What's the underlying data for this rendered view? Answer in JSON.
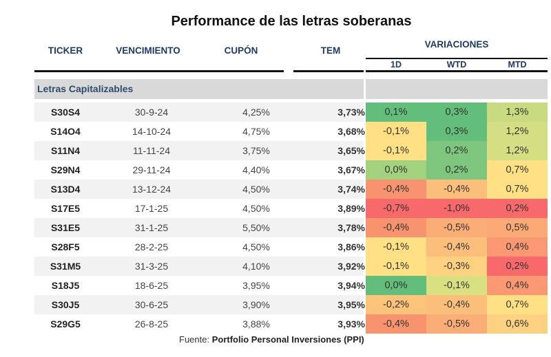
{
  "title": "Performance de las letras soberanas",
  "headers": {
    "ticker": "TICKER",
    "vencimiento": "VENCIMIENTO",
    "cupon": "CUPÓN",
    "tem": "TEM",
    "variaciones": "VARIACIONES",
    "d1": "1D",
    "wtd": "WTD",
    "mtd": "MTD"
  },
  "group_label": "Letras Capitalizables",
  "rows": [
    {
      "ticker": "S30S4",
      "vencimiento": "30-9-24",
      "cupon": "4,25%",
      "tem": "3,73%",
      "d1": "0,1%",
      "wtd": "0,3%",
      "mtd": "1,3%"
    },
    {
      "ticker": "S14O4",
      "vencimiento": "14-10-24",
      "cupon": "4,75%",
      "tem": "3,68%",
      "d1": "-0,1%",
      "wtd": "0,3%",
      "mtd": "1,2%"
    },
    {
      "ticker": "S11N4",
      "vencimiento": "11-11-24",
      "cupon": "3,75%",
      "tem": "3,65%",
      "d1": "-0,1%",
      "wtd": "0,2%",
      "mtd": "1,2%"
    },
    {
      "ticker": "S29N4",
      "vencimiento": "29-11-24",
      "cupon": "4,40%",
      "tem": "3,67%",
      "d1": "0,0%",
      "wtd": "0,2%",
      "mtd": "0,7%"
    },
    {
      "ticker": "S13D4",
      "vencimiento": "13-12-24",
      "cupon": "4,50%",
      "tem": "3,74%",
      "d1": "-0,4%",
      "wtd": "-0,4%",
      "mtd": "0,7%"
    },
    {
      "ticker": "S17E5",
      "vencimiento": "17-1-25",
      "cupon": "4,50%",
      "tem": "3,89%",
      "d1": "-0,7%",
      "wtd": "-1,0%",
      "mtd": "0,2%"
    },
    {
      "ticker": "S31E5",
      "vencimiento": "31-1-25",
      "cupon": "5,50%",
      "tem": "3,78%",
      "d1": "-0,4%",
      "wtd": "-0,5%",
      "mtd": "0,5%"
    },
    {
      "ticker": "S28F5",
      "vencimiento": "28-2-25",
      "cupon": "4,50%",
      "tem": "3,86%",
      "d1": "-0,1%",
      "wtd": "-0,4%",
      "mtd": "0,4%"
    },
    {
      "ticker": "S31M5",
      "vencimiento": "31-3-25",
      "cupon": "4,10%",
      "tem": "3,92%",
      "d1": "-0,1%",
      "wtd": "-0,3%",
      "mtd": "0,2%"
    },
    {
      "ticker": "S18J5",
      "vencimiento": "18-6-25",
      "cupon": "3,95%",
      "tem": "3,94%",
      "d1": "0,0%",
      "wtd": "-0,1%",
      "mtd": "0,4%"
    },
    {
      "ticker": "S30J5",
      "vencimiento": "30-6-25",
      "cupon": "3,90%",
      "tem": "3,95%",
      "d1": "-0,2%",
      "wtd": "-0,4%",
      "mtd": "0,7%"
    },
    {
      "ticker": "S29G5",
      "vencimiento": "26-8-25",
      "cupon": "3,88%",
      "tem": "3,93%",
      "d1": "-0,4%",
      "wtd": "-0,5%",
      "mtd": "0,6%"
    }
  ],
  "heat_colors": {
    "d1": [
      "#63be7b",
      "#ffe084",
      "#ffe084",
      "#a3d27f",
      "#f8936f",
      "#f8696b",
      "#f8936f",
      "#ffe084",
      "#ffe084",
      "#63be7b",
      "#fcc37a",
      "#f8936f"
    ],
    "wtd": [
      "#63be7b",
      "#63be7b",
      "#7ec67d",
      "#7ec67d",
      "#fcbf7b",
      "#f8696b",
      "#fbad78",
      "#fcbf7b",
      "#fdd17f",
      "#d9e082",
      "#fcbf7b",
      "#fbad78"
    ],
    "mtd": [
      "#c9db81",
      "#d4de82",
      "#d4de82",
      "#ffe084",
      "#ffe084",
      "#f8696b",
      "#fbaa77",
      "#fa9874",
      "#f8696b",
      "#fa9874",
      "#ffe084",
      "#fdd17f"
    ]
  },
  "footer": {
    "prefix": "Fuente: ",
    "source": "Portfolio Personal Inversiones (PPI)"
  }
}
